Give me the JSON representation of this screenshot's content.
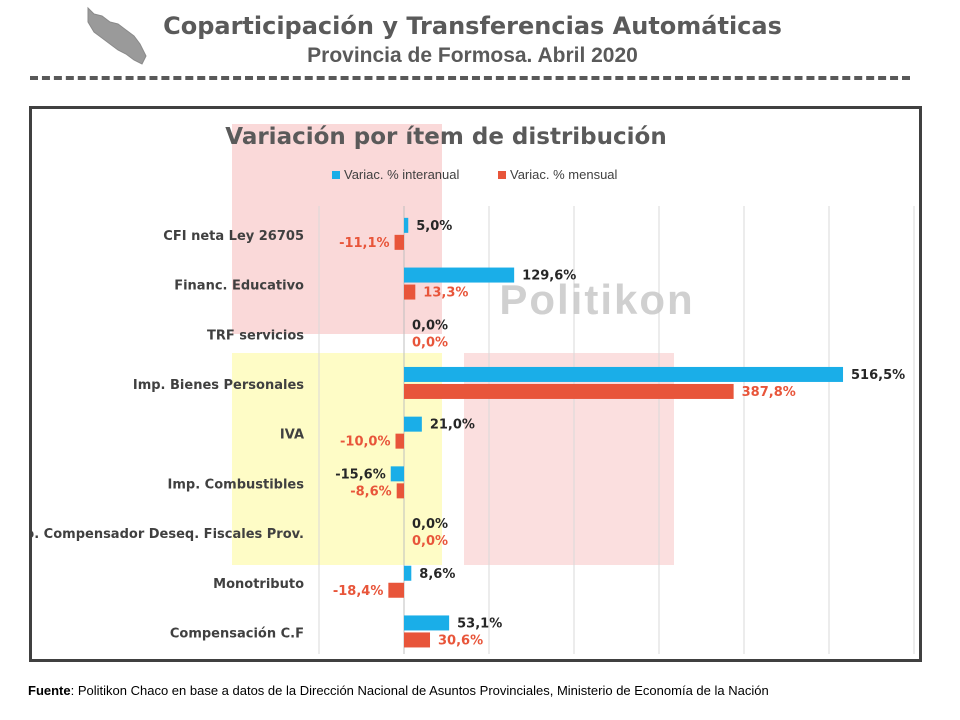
{
  "header": {
    "title": "Coparticipación y Transferencias Automáticas",
    "subtitle": "Provincia de Formosa. Abril 2020"
  },
  "watermark": "Politikon",
  "footer": {
    "label": "Fuente",
    "text": ": Politikon Chaco en base a datos de la Dirección Nacional de Asuntos Provinciales, Ministerio de Economía de la Nación"
  },
  "colors": {
    "interanual": "#1aaee8",
    "mensual": "#e8553a",
    "title_gray": "#5a5a5a",
    "frame": "#404040"
  },
  "chart_data": {
    "type": "bar",
    "orientation": "horizontal",
    "title": "Variación por ítem de distribución",
    "categories": [
      "CFI neta Ley 26705",
      "Financ. Educativo",
      "TRF servicios",
      "Imp. Bienes Personales",
      "IVA",
      "Imp. Combustibles",
      "Fdo. Compensador Deseq. Fiscales Prov.",
      "Monotributo",
      "Compensación C.F"
    ],
    "series": [
      {
        "name": "Variac. % interanual",
        "values": [
          5.0,
          129.6,
          0.0,
          516.5,
          21.0,
          -15.6,
          0.0,
          8.6,
          53.1
        ],
        "labels": [
          "5,0%",
          "129,6%",
          "0,0%",
          "516,5%",
          "21,0%",
          "-15,6%",
          "0,0%",
          "8,6%",
          "53,1%"
        ]
      },
      {
        "name": "Variac. % mensual",
        "values": [
          -11.1,
          13.3,
          0.0,
          387.8,
          -10.0,
          -8.6,
          0.0,
          -18.4,
          30.6
        ],
        "labels": [
          "-11,1%",
          "13,3%",
          "0,0%",
          "387,8%",
          "-10,0%",
          "-8,6%",
          "0,0%",
          "-18,4%",
          "30,6%"
        ]
      }
    ],
    "xlim": [
      -100,
      600
    ],
    "grid": "vertical",
    "legend": "top-center",
    "xlabel": "",
    "ylabel": ""
  }
}
